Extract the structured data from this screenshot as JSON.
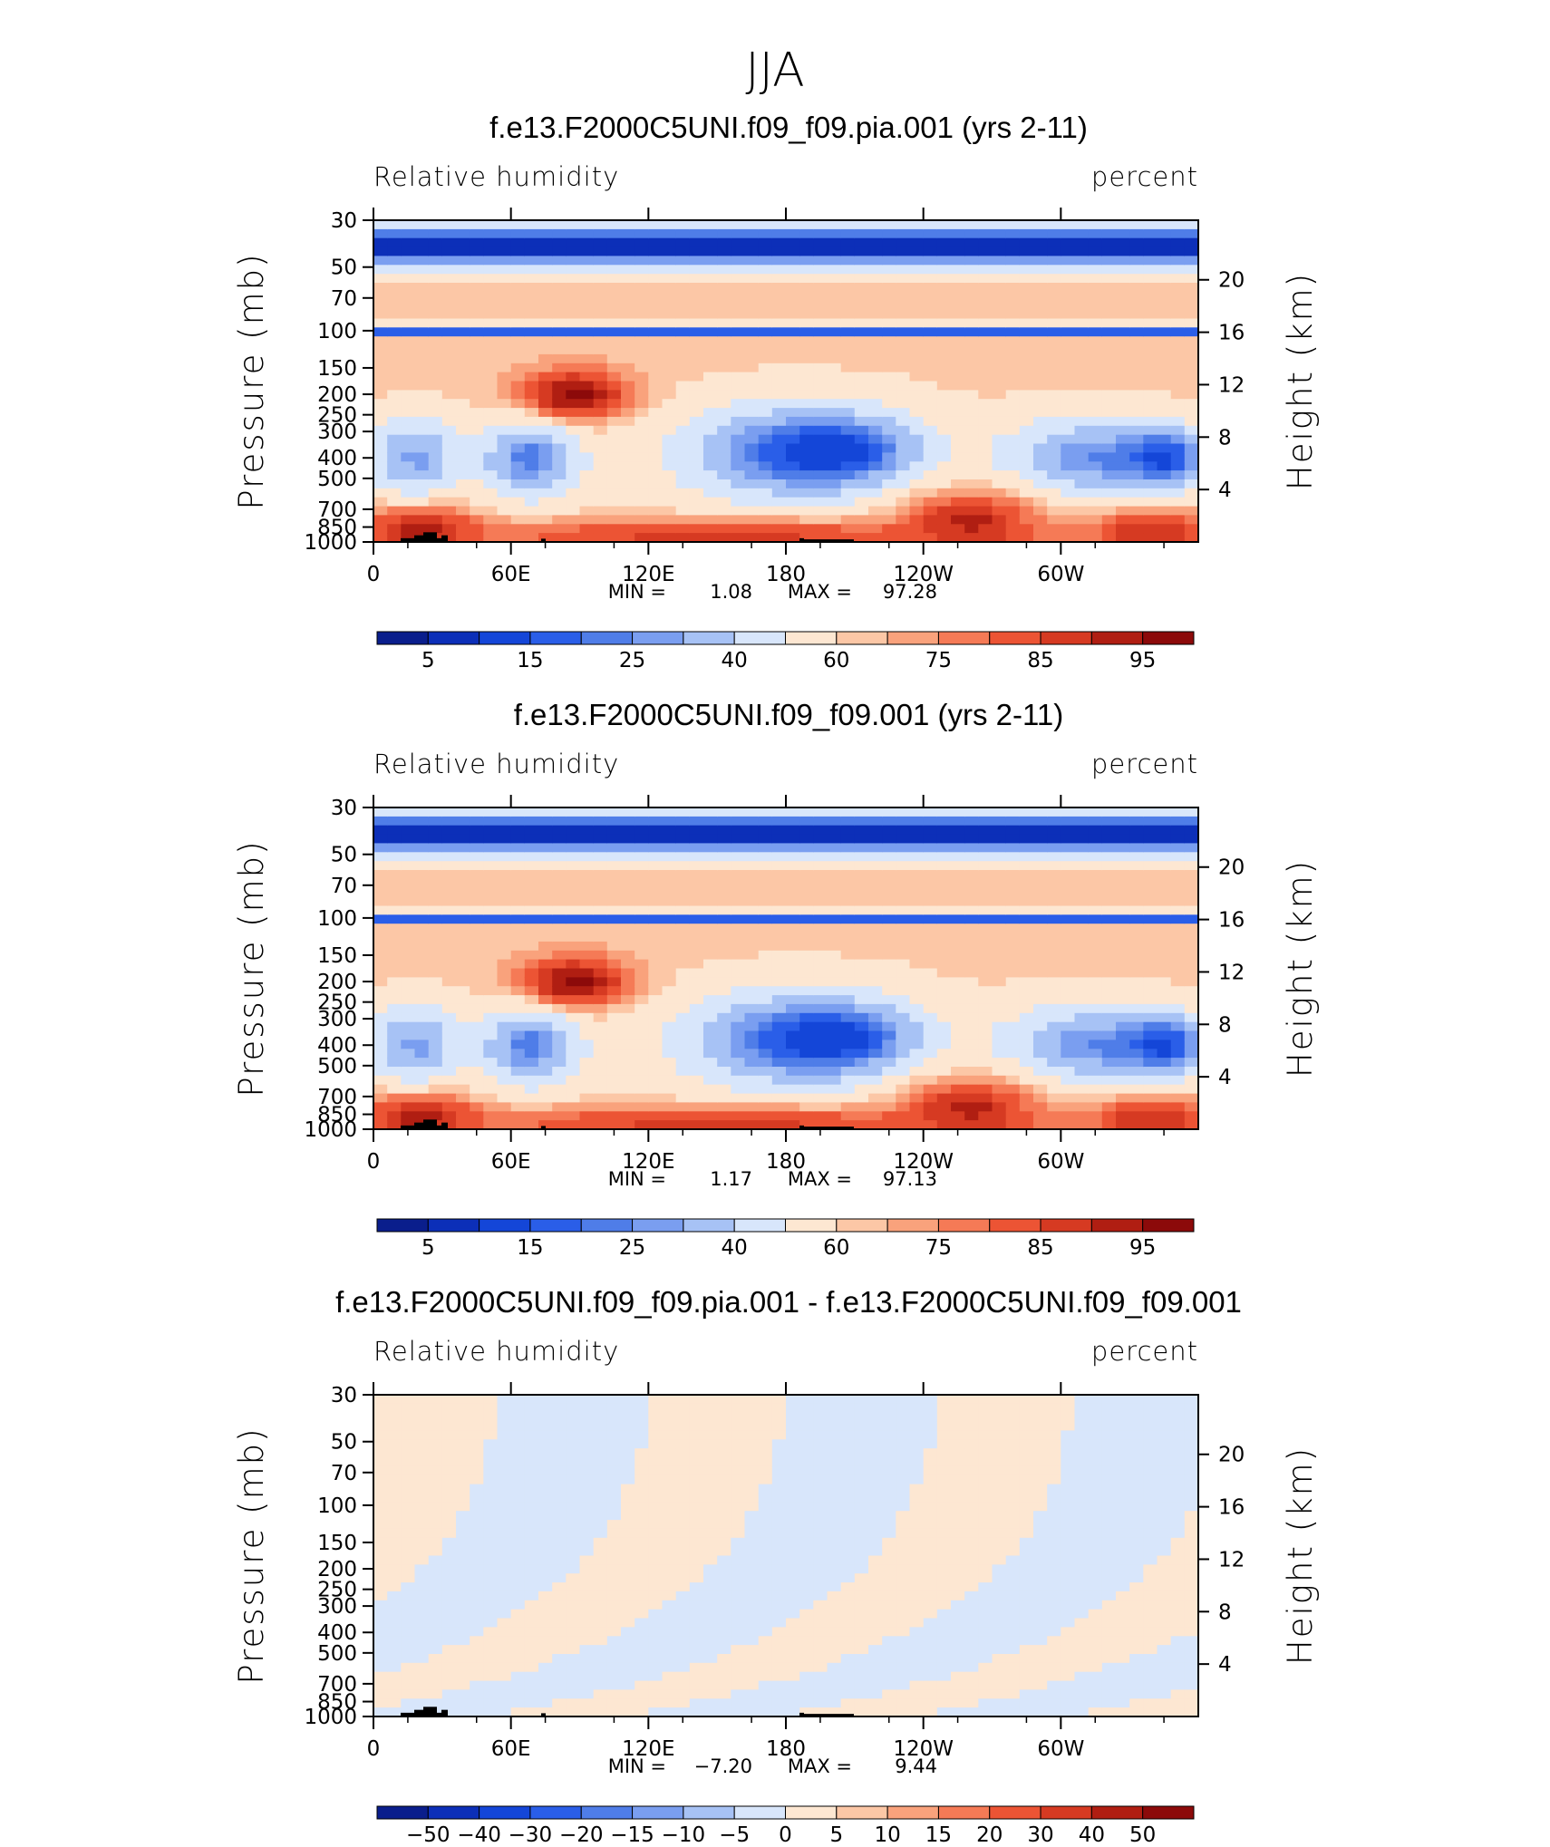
{
  "figure": {
    "title": "JJA",
    "theme_colors": {
      "dark_blue": "#0a1e8c",
      "mid_blue": "#3f73e8",
      "light_blue": "#d8e6fb",
      "white": "#fffaf0",
      "light_red": "#fcdcc0",
      "mid_red": "#f06a3c",
      "dark_red": "#8c0a0a",
      "land": "#000000"
    }
  },
  "chart_data": [
    {
      "type": "heatmap",
      "title": "f.e13.F2000C5UNI.f09_f09.pia.001 (yrs 2-11)",
      "field_label": "Relative humidity",
      "units_label": "percent",
      "ylabel": "Pressure (mb)",
      "ylabel_right": "Height (km)",
      "x_ticks": [
        "0",
        "60E",
        "120E",
        "180",
        "120W",
        "60W"
      ],
      "x_range_deg": [
        0,
        360
      ],
      "y_ticks": [
        "30",
        "50",
        "70",
        "100",
        "150",
        "200",
        "250",
        "300",
        "400",
        "500",
        "700",
        "850",
        "1000"
      ],
      "y_ticks_right": [
        "20",
        "16",
        "12",
        "8",
        "4"
      ],
      "stats": {
        "min_label": "MIN =",
        "min": "1.08",
        "max_label": "MAX =",
        "max": "97.28"
      },
      "colorbar_labels": [
        "5",
        "15",
        "25",
        "40",
        "60",
        "75",
        "85",
        "95"
      ],
      "colorbar_levels": [
        5,
        10,
        15,
        20,
        25,
        30,
        40,
        50,
        60,
        65,
        70,
        75,
        80,
        85,
        90,
        95
      ]
    },
    {
      "type": "heatmap",
      "title": "f.e13.F2000C5UNI.f09_f09.001 (yrs 2-11)",
      "field_label": "Relative humidity",
      "units_label": "percent",
      "ylabel": "Pressure (mb)",
      "ylabel_right": "Height (km)",
      "x_ticks": [
        "0",
        "60E",
        "120E",
        "180",
        "120W",
        "60W"
      ],
      "x_range_deg": [
        0,
        360
      ],
      "y_ticks": [
        "30",
        "50",
        "70",
        "100",
        "150",
        "200",
        "250",
        "300",
        "400",
        "500",
        "700",
        "850",
        "1000"
      ],
      "y_ticks_right": [
        "20",
        "16",
        "12",
        "8",
        "4"
      ],
      "stats": {
        "min_label": "MIN =",
        "min": "1.17",
        "max_label": "MAX =",
        "max": "97.13"
      },
      "colorbar_labels": [
        "5",
        "15",
        "25",
        "40",
        "60",
        "75",
        "85",
        "95"
      ],
      "colorbar_levels": [
        5,
        10,
        15,
        20,
        25,
        30,
        40,
        50,
        60,
        65,
        70,
        75,
        80,
        85,
        90,
        95
      ]
    },
    {
      "type": "heatmap",
      "title": "f.e13.F2000C5UNI.f09_f09.pia.001 - f.e13.F2000C5UNI.f09_f09.001",
      "field_label": "Relative humidity",
      "units_label": "percent",
      "ylabel": "Pressure (mb)",
      "ylabel_right": "Height (km)",
      "x_ticks": [
        "0",
        "60E",
        "120E",
        "180",
        "120W",
        "60W"
      ],
      "x_range_deg": [
        0,
        360
      ],
      "y_ticks": [
        "30",
        "50",
        "70",
        "100",
        "150",
        "200",
        "250",
        "300",
        "400",
        "500",
        "700",
        "850",
        "1000"
      ],
      "y_ticks_right": [
        "20",
        "16",
        "12",
        "8",
        "4"
      ],
      "stats": {
        "min_label": "MIN =",
        "min": "−7.20",
        "max_label": "MAX =",
        "max": "9.44"
      },
      "colorbar_labels": [
        "−50",
        "−40",
        "−30",
        "−20",
        "−15",
        "−10",
        "−5",
        "0",
        "5",
        "10",
        "15",
        "20",
        "30",
        "40",
        "50"
      ],
      "colorbar_levels": [
        -50,
        -40,
        -30,
        -20,
        -15,
        -10,
        -5,
        0,
        5,
        10,
        15,
        20,
        30,
        40,
        50
      ]
    }
  ]
}
